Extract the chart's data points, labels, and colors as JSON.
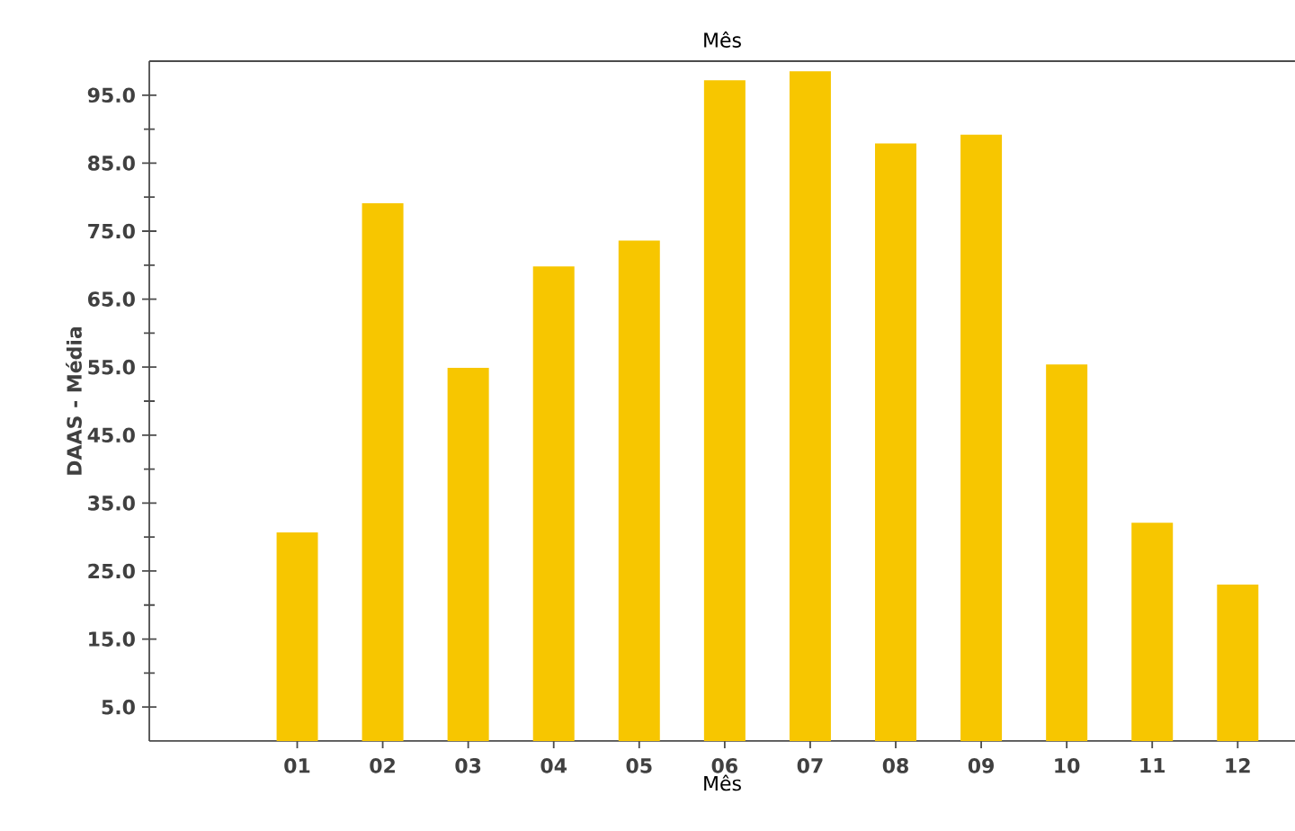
{
  "chart_data": {
    "type": "bar",
    "title": "Mês",
    "xlabel": "Mês",
    "ylabel": "DAAS - Média",
    "categories": [
      "01",
      "02",
      "03",
      "04",
      "05",
      "06",
      "07",
      "08",
      "09",
      "10",
      "11",
      "12"
    ],
    "values": [
      30.7,
      79.1,
      54.9,
      69.8,
      73.6,
      97.2,
      98.5,
      87.9,
      89.2,
      55.4,
      32.1,
      23.0
    ],
    "color": "#f7c600",
    "ylim": [
      0,
      100
    ],
    "yticks": [
      {
        "value": 5,
        "label": "5.0"
      },
      {
        "value": 15,
        "label": "15.0"
      },
      {
        "value": 25,
        "label": "25.0"
      },
      {
        "value": 35,
        "label": "35.0"
      },
      {
        "value": 45,
        "label": "45.0"
      },
      {
        "value": 55,
        "label": "55.0"
      },
      {
        "value": 65,
        "label": "65.0"
      },
      {
        "value": 75,
        "label": "75.0"
      },
      {
        "value": 85,
        "label": "85.0"
      },
      {
        "value": 95,
        "label": "95.0"
      }
    ],
    "grid": false
  }
}
